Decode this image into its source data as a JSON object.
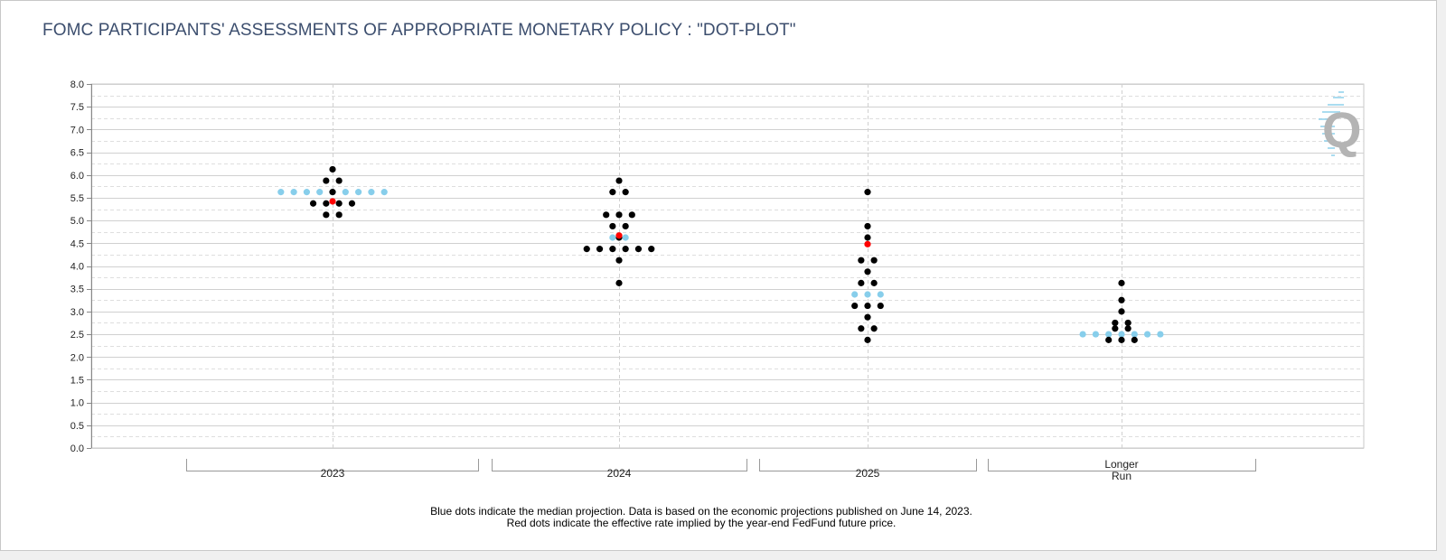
{
  "title": "FOMC PARTICIPANTS' ASSESSMENTS OF APPROPRIATE MONETARY POLICY : \"DOT-PLOT\"",
  "footnote": {
    "line1": "Blue dots indicate the median projection. Data is based on the economic projections published on June 14, 2023.",
    "line2": "Red dots indicate the effective rate implied by the year-end FedFund future price."
  },
  "logo": {
    "text": "Q"
  },
  "colors": {
    "participant": "#000000",
    "median": "#87ceeb",
    "futures": "#ff0000",
    "title": "#3c4e6e",
    "grid": "#c8c8c8"
  },
  "chart_data": {
    "type": "scatter",
    "title": "FOMC PARTICIPANTS' ASSESSMENTS OF APPROPRIATE MONETARY POLICY : \"DOT-PLOT\"",
    "ylim": [
      0,
      8
    ],
    "y_ticks": [
      "0.0",
      "0.5",
      "1.0",
      "1.5",
      "2.0",
      "2.5",
      "3.0",
      "3.5",
      "4.0",
      "4.5",
      "5.0",
      "5.5",
      "6.0",
      "6.5",
      "7.0",
      "7.5",
      "8.0"
    ],
    "grid": true,
    "categories": [
      {
        "label": [
          "2023"
        ]
      },
      {
        "label": [
          "2024"
        ]
      },
      {
        "label": [
          "2025"
        ]
      },
      {
        "label": [
          "Longer",
          "Run"
        ]
      }
    ],
    "participant_dots": [
      {
        "category": "2023",
        "rates": [
          {
            "rate": 6.125,
            "count": 1
          },
          {
            "rate": 5.875,
            "count": 2
          },
          {
            "rate": 5.625,
            "count": 1
          },
          {
            "rate": 5.375,
            "count": 4
          },
          {
            "rate": 5.125,
            "count": 2
          }
        ]
      },
      {
        "category": "2024",
        "rates": [
          {
            "rate": 5.875,
            "count": 1
          },
          {
            "rate": 5.625,
            "count": 2
          },
          {
            "rate": 5.125,
            "count": 3
          },
          {
            "rate": 4.875,
            "count": 2
          },
          {
            "rate": 4.625,
            "count": 1
          },
          {
            "rate": 4.375,
            "count": 6
          },
          {
            "rate": 4.125,
            "count": 1
          },
          {
            "rate": 3.625,
            "count": 1
          }
        ]
      },
      {
        "category": "2025",
        "rates": [
          {
            "rate": 5.625,
            "count": 1
          },
          {
            "rate": 4.875,
            "count": 1
          },
          {
            "rate": 4.625,
            "count": 1
          },
          {
            "rate": 4.125,
            "count": 2
          },
          {
            "rate": 3.875,
            "count": 1
          },
          {
            "rate": 3.625,
            "count": 2
          },
          {
            "rate": 3.125,
            "count": 3
          },
          {
            "rate": 2.875,
            "count": 1
          },
          {
            "rate": 2.625,
            "count": 2
          },
          {
            "rate": 2.375,
            "count": 1
          }
        ]
      },
      {
        "category": "Longer Run",
        "rates": [
          {
            "rate": 3.625,
            "count": 1
          },
          {
            "rate": 3.25,
            "count": 1
          },
          {
            "rate": 3.0,
            "count": 1
          },
          {
            "rate": 2.75,
            "count": 2
          },
          {
            "rate": 2.625,
            "count": 2
          },
          {
            "rate": 2.375,
            "count": 3
          }
        ]
      }
    ],
    "median_dots": [
      {
        "category": "2023",
        "rate": 5.625,
        "count": 9
      },
      {
        "category": "2024",
        "rate": 4.625,
        "count": 2
      },
      {
        "category": "2025",
        "rate": 3.375,
        "count": 3
      },
      {
        "category": "Longer Run",
        "rate": 2.5,
        "count": 7
      }
    ],
    "futures_dots": [
      {
        "category": "2023",
        "rate": 5.42
      },
      {
        "category": "2024",
        "rate": 4.67
      },
      {
        "category": "2025",
        "rate": 4.48
      }
    ]
  }
}
